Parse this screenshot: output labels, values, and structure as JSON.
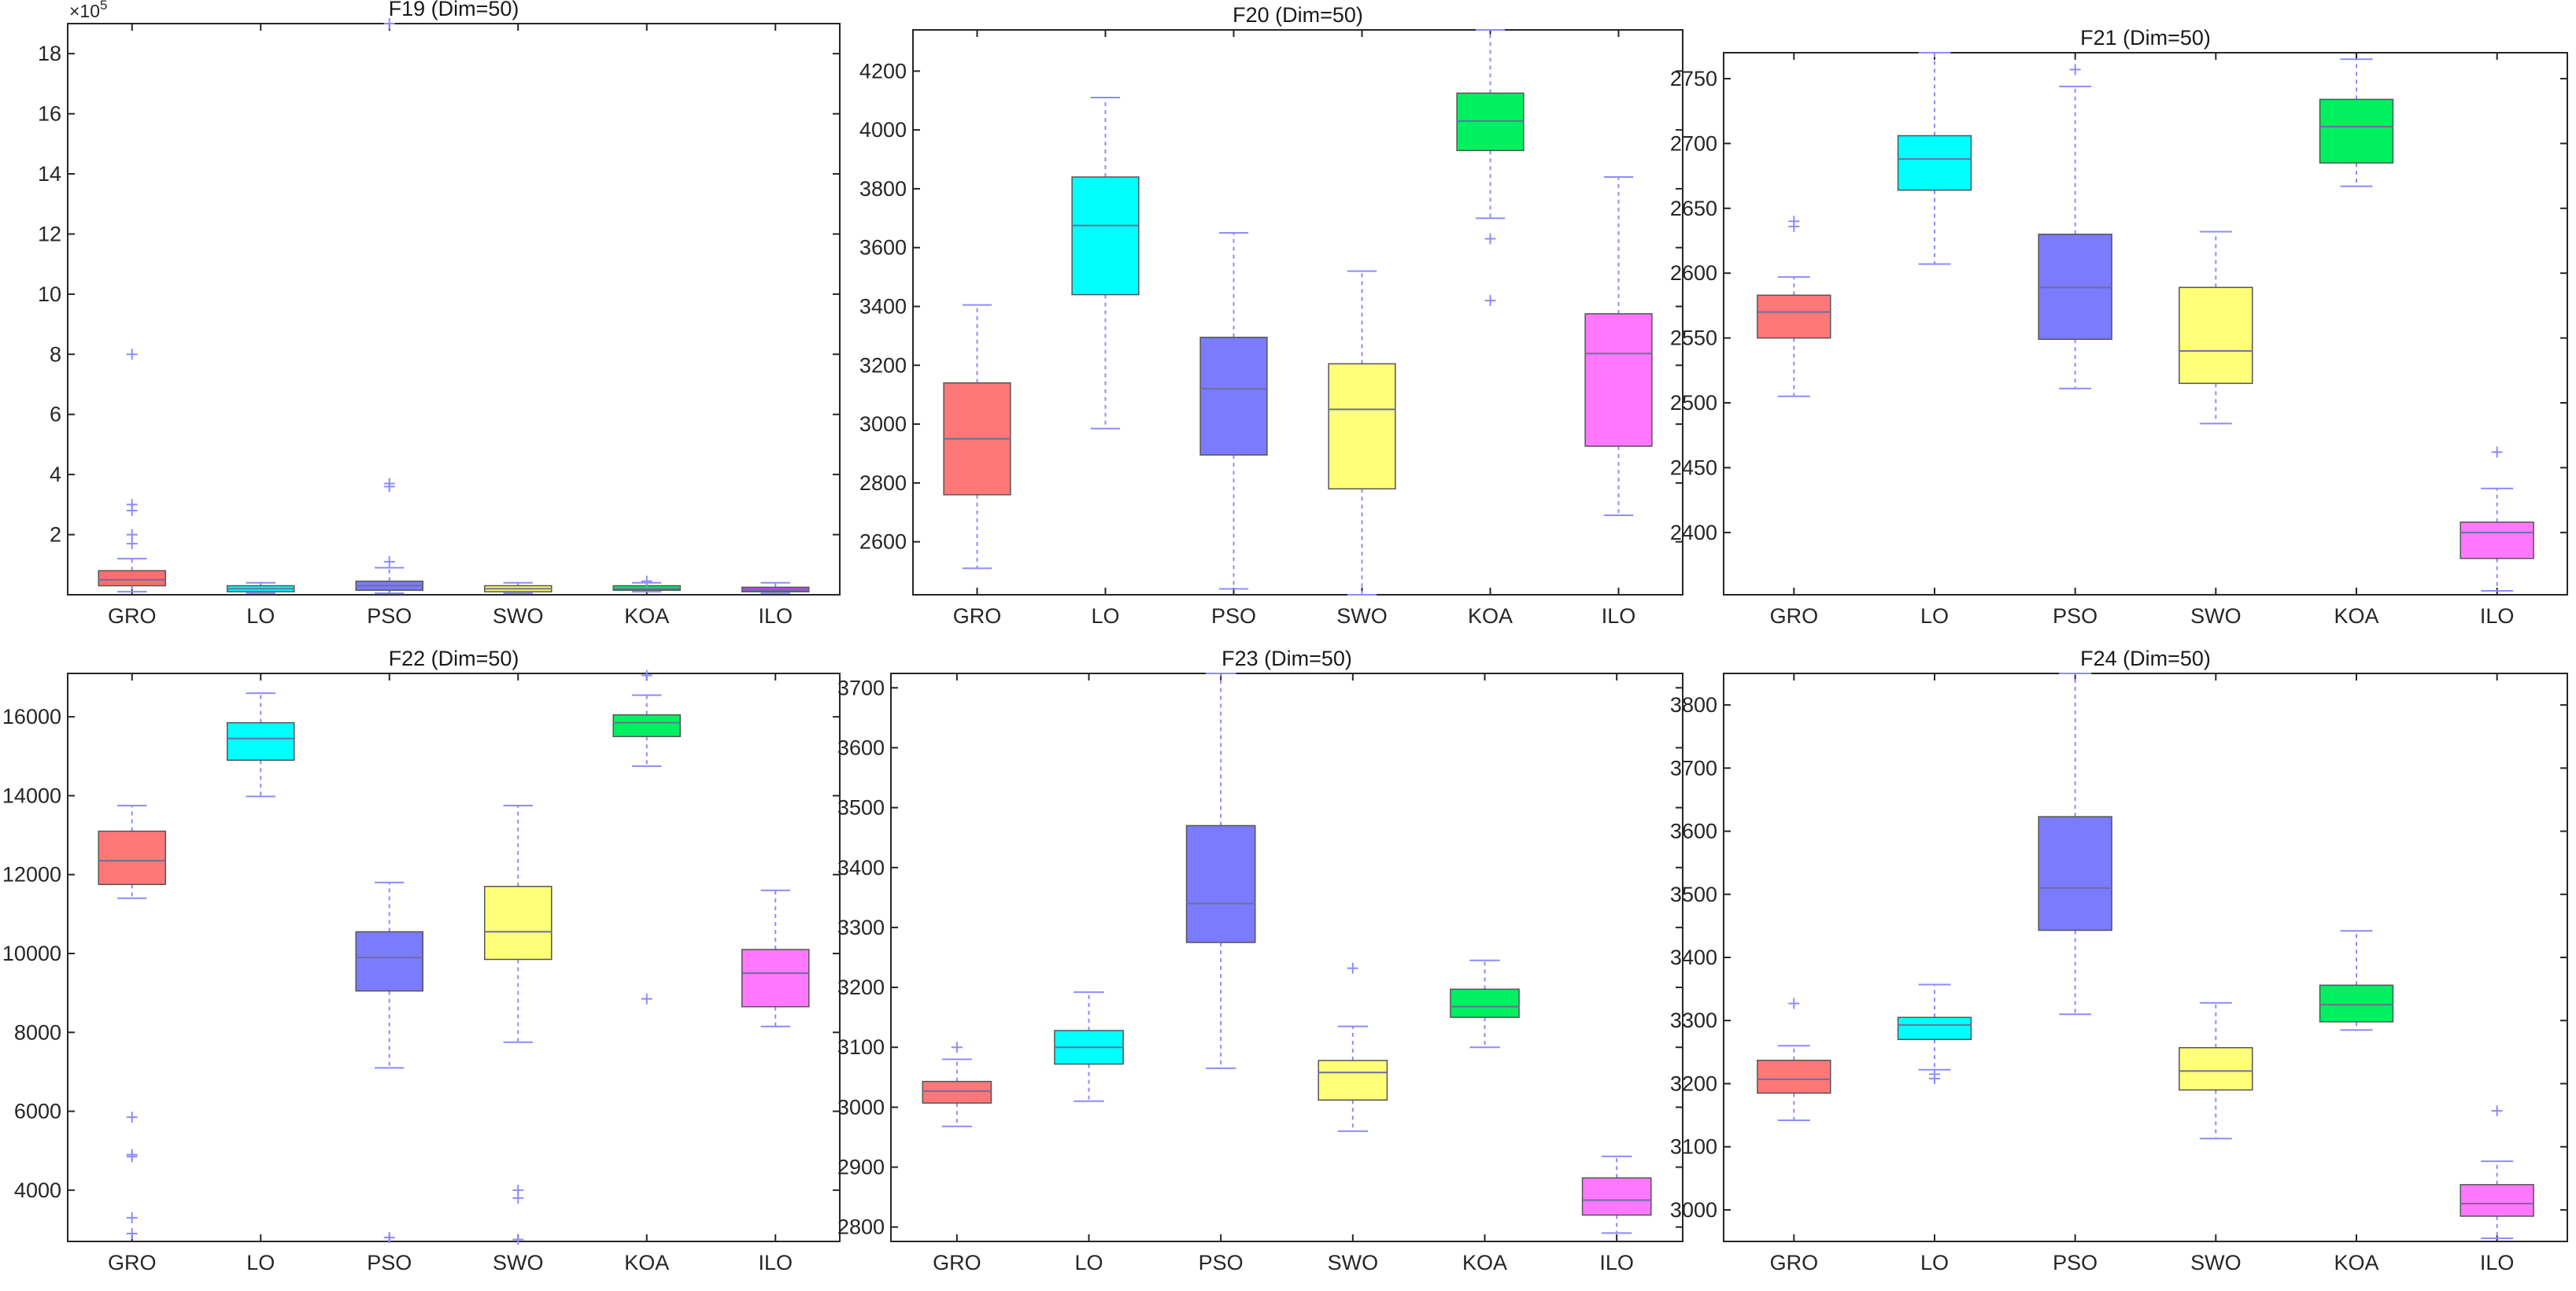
{
  "figure": {
    "categories": [
      "GRO",
      "LO",
      "PSO",
      "SWO",
      "KOA",
      "ILO"
    ]
  },
  "chart_data": [
    {
      "type": "box",
      "title": "F19 (Dim=50)",
      "exponent_label": "×10",
      "exponent_power": "5",
      "ylim": [
        0,
        19
      ],
      "yticks": [
        2,
        4,
        6,
        8,
        10,
        12,
        14,
        16,
        18
      ],
      "categories": [
        "GRO",
        "LO",
        "PSO",
        "SWO",
        "KOA",
        "ILO"
      ],
      "boxes": [
        {
          "name": "GRO",
          "color": "#FF6E6E",
          "min": 0.1,
          "q1": 0.3,
          "median": 0.5,
          "q3": 0.8,
          "max": 1.2,
          "outliers": [
            1.7,
            2.0,
            2.8,
            3.0,
            8.0
          ]
        },
        {
          "name": "LO",
          "color": "#00FFFF",
          "min": 0.05,
          "q1": 0.1,
          "median": 0.2,
          "q3": 0.3,
          "max": 0.4,
          "outliers": []
        },
        {
          "name": "PSO",
          "color": "#7B7BFF",
          "min": 0.05,
          "q1": 0.15,
          "median": 0.3,
          "q3": 0.45,
          "max": 0.9,
          "outliers": [
            1.1,
            3.6,
            3.7,
            19.0
          ]
        },
        {
          "name": "SWO",
          "color": "#FFFF66",
          "min": 0.05,
          "q1": 0.1,
          "median": 0.2,
          "q3": 0.3,
          "max": 0.4,
          "outliers": []
        },
        {
          "name": "KOA",
          "color": "#00F060",
          "min": 0.1,
          "q1": 0.15,
          "median": 0.2,
          "q3": 0.3,
          "max": 0.4,
          "outliers": [
            0.45
          ]
        },
        {
          "name": "ILO",
          "color": "#C040FF",
          "min": 0.05,
          "q1": 0.1,
          "median": 0.15,
          "q3": 0.25,
          "max": 0.4,
          "outliers": []
        }
      ]
    },
    {
      "type": "box",
      "title": "F20 (Dim=50)",
      "ylim": [
        2420,
        4340
      ],
      "yticks": [
        2600,
        2800,
        3000,
        3200,
        3400,
        3600,
        3800,
        4000,
        4200
      ],
      "categories": [
        "GRO",
        "LO",
        "PSO",
        "SWO",
        "KOA",
        "ILO"
      ],
      "boxes": [
        {
          "name": "GRO",
          "color": "#FF7878",
          "min": 2510,
          "q1": 2760,
          "median": 2950,
          "q3": 3140,
          "max": 3405,
          "outliers": []
        },
        {
          "name": "LO",
          "color": "#00FFFF",
          "min": 2985,
          "q1": 3440,
          "median": 3675,
          "q3": 3840,
          "max": 4110,
          "outliers": []
        },
        {
          "name": "PSO",
          "color": "#7B7BFF",
          "min": 2440,
          "q1": 2895,
          "median": 3120,
          "q3": 3295,
          "max": 3650,
          "outliers": []
        },
        {
          "name": "SWO",
          "color": "#FFFF78",
          "min": 2420,
          "q1": 2780,
          "median": 3050,
          "q3": 3205,
          "max": 3520,
          "outliers": []
        },
        {
          "name": "KOA",
          "color": "#00F060",
          "min": 3700,
          "q1": 3930,
          "median": 4030,
          "q3": 4125,
          "max": 4340,
          "outliers": [
            3630,
            3420
          ]
        },
        {
          "name": "ILO",
          "color": "#FF78FF",
          "min": 2690,
          "q1": 2925,
          "median": 3240,
          "q3": 3375,
          "max": 3840,
          "outliers": []
        }
      ]
    },
    {
      "type": "box",
      "title": "F21 (Dim=50)",
      "ylim": [
        2352,
        2770
      ],
      "yticks": [
        2400,
        2450,
        2500,
        2550,
        2600,
        2650,
        2700,
        2750
      ],
      "categories": [
        "GRO",
        "LO",
        "PSO",
        "SWO",
        "KOA",
        "ILO"
      ],
      "boxes": [
        {
          "name": "GRO",
          "color": "#FF7878",
          "min": 2505,
          "q1": 2550,
          "median": 2570,
          "q3": 2583,
          "max": 2597,
          "outliers": [
            2636,
            2640
          ]
        },
        {
          "name": "LO",
          "color": "#00FFFF",
          "min": 2607,
          "q1": 2664,
          "median": 2688,
          "q3": 2706,
          "max": 2770,
          "outliers": []
        },
        {
          "name": "PSO",
          "color": "#7B7BFF",
          "min": 2511,
          "q1": 2549,
          "median": 2589,
          "q3": 2630,
          "max": 2744,
          "outliers": [
            2757
          ]
        },
        {
          "name": "SWO",
          "color": "#FFFF78",
          "min": 2484,
          "q1": 2515,
          "median": 2540,
          "q3": 2589,
          "max": 2632,
          "outliers": []
        },
        {
          "name": "KOA",
          "color": "#00F060",
          "min": 2667,
          "q1": 2685,
          "median": 2713,
          "q3": 2734,
          "max": 2765,
          "outliers": []
        },
        {
          "name": "ILO",
          "color": "#FF78FF",
          "min": 2355,
          "q1": 2380,
          "median": 2400,
          "q3": 2408,
          "max": 2434,
          "outliers": [
            2462
          ]
        }
      ]
    },
    {
      "type": "box",
      "title": "F22 (Dim=50)",
      "ylim": [
        2700,
        17100
      ],
      "yticks": [
        4000,
        6000,
        8000,
        10000,
        12000,
        14000,
        16000
      ],
      "categories": [
        "GRO",
        "LO",
        "PSO",
        "SWO",
        "KOA",
        "ILO"
      ],
      "boxes": [
        {
          "name": "GRO",
          "color": "#FF7878",
          "min": 11400,
          "q1": 11750,
          "median": 12350,
          "q3": 13100,
          "max": 13750,
          "outliers": [
            5850,
            4900,
            4850,
            3300,
            2900
          ]
        },
        {
          "name": "LO",
          "color": "#00FFFF",
          "min": 13980,
          "q1": 14900,
          "median": 15450,
          "q3": 15850,
          "max": 16600,
          "outliers": []
        },
        {
          "name": "PSO",
          "color": "#7B7BFF",
          "min": 7100,
          "q1": 9050,
          "median": 9900,
          "q3": 10550,
          "max": 11800,
          "outliers": [
            2800
          ]
        },
        {
          "name": "SWO",
          "color": "#FFFF78",
          "min": 7750,
          "q1": 9850,
          "median": 10550,
          "q3": 11700,
          "max": 13750,
          "outliers": [
            4000,
            3800,
            2750
          ]
        },
        {
          "name": "KOA",
          "color": "#00F060",
          "min": 14750,
          "q1": 15500,
          "median": 15850,
          "q3": 16050,
          "max": 16550,
          "outliers": [
            17050,
            8850
          ]
        },
        {
          "name": "ILO",
          "color": "#FF78FF",
          "min": 8150,
          "q1": 8650,
          "median": 9500,
          "q3": 10100,
          "max": 11600,
          "outliers": []
        }
      ]
    },
    {
      "type": "box",
      "title": "F23 (Dim=50)",
      "ylim": [
        2776,
        3724
      ],
      "yticks": [
        2800,
        2900,
        3000,
        3100,
        3200,
        3300,
        3400,
        3500,
        3600,
        3700
      ],
      "categories": [
        "GRO",
        "LO",
        "PSO",
        "SWO",
        "KOA",
        "ILO"
      ],
      "boxes": [
        {
          "name": "GRO",
          "color": "#FF7878",
          "min": 2968,
          "q1": 3007,
          "median": 3027,
          "q3": 3043,
          "max": 3080,
          "outliers": [
            3100
          ]
        },
        {
          "name": "LO",
          "color": "#00FFFF",
          "min": 3010,
          "q1": 3072,
          "median": 3100,
          "q3": 3128,
          "max": 3192,
          "outliers": []
        },
        {
          "name": "PSO",
          "color": "#7B7BFF",
          "min": 3065,
          "q1": 3275,
          "median": 3340,
          "q3": 3470,
          "max": 3724,
          "outliers": []
        },
        {
          "name": "SWO",
          "color": "#FFFF78",
          "min": 2960,
          "q1": 3012,
          "median": 3058,
          "q3": 3078,
          "max": 3135,
          "outliers": [
            3232
          ]
        },
        {
          "name": "KOA",
          "color": "#00F060",
          "min": 3100,
          "q1": 3150,
          "median": 3168,
          "q3": 3197,
          "max": 3245,
          "outliers": []
        },
        {
          "name": "ILO",
          "color": "#FF78FF",
          "min": 2790,
          "q1": 2820,
          "median": 2845,
          "q3": 2882,
          "max": 2918,
          "outliers": []
        }
      ]
    },
    {
      "type": "box",
      "title": "F24 (Dim=50)",
      "ylim": [
        2950,
        3850
      ],
      "yticks": [
        3000,
        3100,
        3200,
        3300,
        3400,
        3500,
        3600,
        3700,
        3800
      ],
      "categories": [
        "GRO",
        "LO",
        "PSO",
        "SWO",
        "KOA",
        "ILO"
      ],
      "boxes": [
        {
          "name": "GRO",
          "color": "#FF7878",
          "min": 3142,
          "q1": 3185,
          "median": 3207,
          "q3": 3237,
          "max": 3260,
          "outliers": [
            3327
          ]
        },
        {
          "name": "LO",
          "color": "#00FFFF",
          "min": 3222,
          "q1": 3270,
          "median": 3293,
          "q3": 3305,
          "max": 3357,
          "outliers": [
            3215,
            3208
          ]
        },
        {
          "name": "PSO",
          "color": "#7B7BFF",
          "min": 3310,
          "q1": 3443,
          "median": 3510,
          "q3": 3623,
          "max": 3850,
          "outliers": []
        },
        {
          "name": "SWO",
          "color": "#FFFF78",
          "min": 3113,
          "q1": 3190,
          "median": 3220,
          "q3": 3257,
          "max": 3328,
          "outliers": []
        },
        {
          "name": "KOA",
          "color": "#00F060",
          "min": 3285,
          "q1": 3298,
          "median": 3325,
          "q3": 3356,
          "max": 3442,
          "outliers": []
        },
        {
          "name": "ILO",
          "color": "#FF78FF",
          "min": 2955,
          "q1": 2990,
          "median": 3010,
          "q3": 3040,
          "max": 3077,
          "outliers": [
            3157
          ]
        }
      ]
    }
  ]
}
